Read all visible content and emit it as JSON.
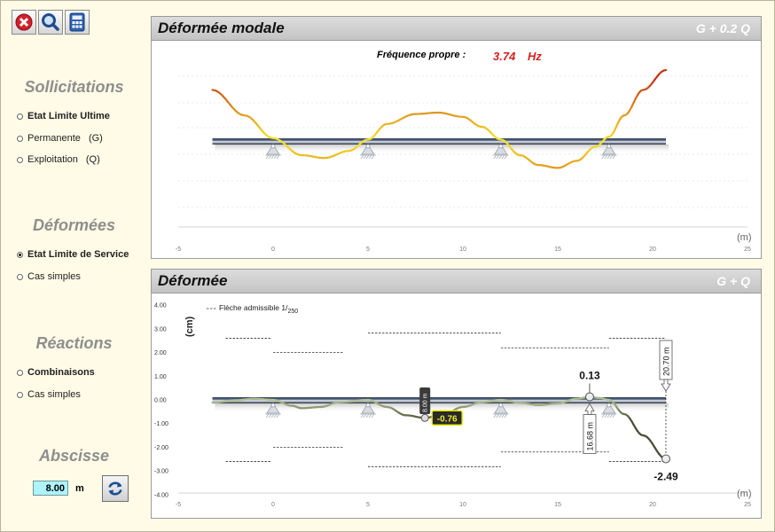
{
  "toolbar": {
    "close_icon": "close-icon",
    "zoom_icon": "magnifier-icon",
    "calc_icon": "calculator-icon"
  },
  "sidebar": {
    "sollicitations_title": "Sollicitations",
    "sollicitations": [
      {
        "label": "Etat Limite Ultime",
        "extra": "",
        "selected": false,
        "bold": true
      },
      {
        "label": "Permanente",
        "extra": "(G)",
        "selected": false,
        "bold": false
      },
      {
        "label": "Exploitation",
        "extra": "(Q)",
        "selected": false,
        "bold": false
      }
    ],
    "deformees_title": "Déformées",
    "deformees": [
      {
        "label": "Etat Limite de Service",
        "selected": true,
        "bold": true
      },
      {
        "label": "Cas simples",
        "selected": false,
        "bold": false
      }
    ],
    "reactions_title": "Réactions",
    "reactions": [
      {
        "label": "Combinaisons",
        "selected": false,
        "bold": true
      },
      {
        "label": "Cas simples",
        "selected": false,
        "bold": false
      }
    ],
    "abscisse_title": "Abscisse",
    "abscisse_value": "8.00",
    "abscisse_unit": "m",
    "refresh_icon": "refresh-icon"
  },
  "panel_modal": {
    "title": "Déformée modale",
    "combination": "G + 0.2 Q",
    "freq_label": "Fréquence propre :",
    "freq_value": "3.74",
    "freq_unit": "Hz",
    "x_unit": "(m)"
  },
  "panel_def": {
    "title": "Déformée",
    "combination": "G + Q",
    "legend": "Flèche admissible 1/",
    "legend_sub": "250",
    "y_unit": "(cm)",
    "x_unit": "(m)",
    "cursor_pos": "8.00 m",
    "cursor_value": "-0.76",
    "max_value": "0.13",
    "max_pos": "16.68 m",
    "min_value": "-2.49",
    "min_pos": "20.70 m"
  },
  "chart_data": [
    {
      "type": "line",
      "title": "Déformée modale",
      "xlabel": "(m)",
      "ylabel": "",
      "xlim": [
        -5,
        25
      ],
      "x_ticks": [
        "-5",
        "0",
        "5",
        "10",
        "15",
        "20",
        "25"
      ],
      "supports_x": [
        0,
        5,
        12,
        17.7
      ],
      "beam_x": [
        -3.2,
        20.7
      ],
      "series": [
        {
          "x": [
            -3.2,
            -1.5,
            0,
            1.5,
            2.7,
            4,
            5,
            6,
            7.5,
            8.7,
            10,
            11,
            12,
            13,
            14,
            15,
            16,
            17,
            17.7,
            18.5,
            19.5,
            20.7
          ],
          "y": [
            1.8,
            0.9,
            0.1,
            -0.5,
            -0.6,
            -0.35,
            0.05,
            0.6,
            0.95,
            1.0,
            0.85,
            0.5,
            0.05,
            -0.5,
            -0.85,
            -0.95,
            -0.7,
            -0.2,
            0.15,
            0.9,
            1.8,
            2.5
          ]
        }
      ]
    },
    {
      "type": "line",
      "title": "Déformée",
      "xlabel": "(m)",
      "ylabel": "(cm)",
      "xlim": [
        -5,
        25
      ],
      "ylim": [
        -4,
        4
      ],
      "x_ticks": [
        "-5",
        "0",
        "5",
        "10",
        "15",
        "20",
        "25"
      ],
      "y_ticks": [
        "4.00",
        "3.00",
        "2.00",
        "1.00",
        "0.00",
        "-1.00",
        "-2.00",
        "-3.00",
        "-4.00"
      ],
      "supports_x": [
        0,
        5,
        12,
        17.7
      ],
      "beam_x": [
        -3.2,
        20.7
      ],
      "series": [
        {
          "x": [
            -3.2,
            -2,
            -1,
            0,
            1,
            1.5,
            2.5,
            3.5,
            5,
            6,
            7,
            8,
            9,
            10,
            11,
            12,
            13,
            14,
            15,
            16,
            16.68,
            17.2,
            17.7,
            18.5,
            19.5,
            20.7
          ],
          "y": [
            -0.12,
            -0.02,
            0.05,
            0.0,
            -0.25,
            -0.35,
            -0.3,
            -0.1,
            0.0,
            -0.3,
            -0.65,
            -0.76,
            -0.6,
            -0.3,
            -0.1,
            0.0,
            -0.12,
            -0.22,
            -0.15,
            0.05,
            0.13,
            0.08,
            0.0,
            -0.6,
            -1.5,
            -2.49
          ]
        }
      ],
      "admissible": [
        {
          "x": [
            -2.5,
            -0.1
          ],
          "y": 2.6
        },
        {
          "x": [
            0,
            3.7
          ],
          "y": 2.0
        },
        {
          "x": [
            5,
            12
          ],
          "y": 2.82
        },
        {
          "x": [
            12,
            17.7
          ],
          "y": 2.2
        },
        {
          "x": [
            17.7,
            20.7
          ],
          "y": 2.6
        },
        {
          "x": [
            -2.5,
            -0.1
          ],
          "y": -2.6
        },
        {
          "x": [
            0,
            3.7
          ],
          "y": -2.0
        },
        {
          "x": [
            5,
            12
          ],
          "y": -2.82
        },
        {
          "x": [
            12,
            17.7
          ],
          "y": -2.2
        },
        {
          "x": [
            17.7,
            20.7
          ],
          "y": -2.6
        }
      ]
    }
  ]
}
